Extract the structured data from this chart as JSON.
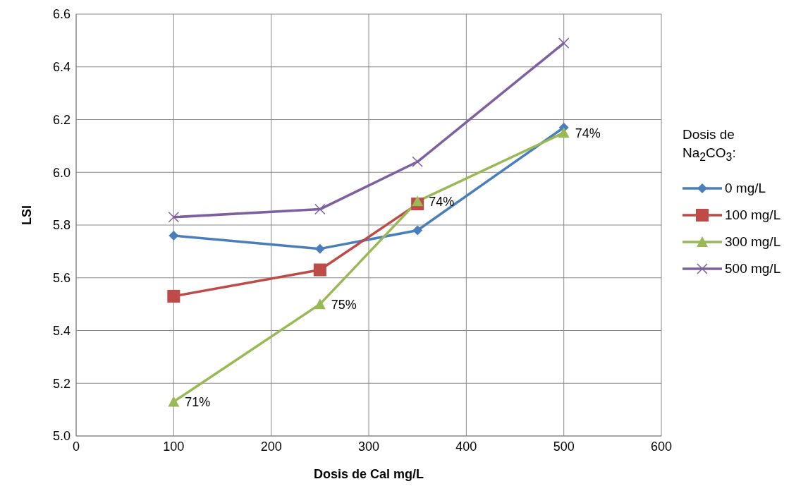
{
  "chart_data": {
    "type": "line",
    "xlabel": "Dosis de Cal mg/L",
    "ylabel": "LSI",
    "legend_title": "Dosis de Na$_{2}$CO$_{3}$:",
    "x": [
      100,
      250,
      350,
      500
    ],
    "series": [
      {
        "name": "0 mg/L",
        "color": "#4a7ebb",
        "marker": "diamond",
        "values": [
          5.76,
          5.71,
          5.78,
          6.17
        ]
      },
      {
        "name": "100 mg/L",
        "color": "#be4b48",
        "marker": "square",
        "values": [
          5.53,
          5.63,
          5.88,
          null
        ]
      },
      {
        "name": "300 mg/L",
        "color": "#98b954",
        "marker": "triangle",
        "values": [
          5.13,
          5.5,
          5.89,
          6.15
        ]
      },
      {
        "name": "500 mg/L",
        "color": "#7d60a0",
        "marker": "cross",
        "values": [
          5.83,
          5.86,
          6.04,
          6.49
        ]
      }
    ],
    "xlim": [
      0,
      600
    ],
    "xticks": [
      0,
      100,
      200,
      300,
      400,
      500,
      600
    ],
    "ylim": [
      5.0,
      6.6
    ],
    "yticks": [
      {
        "value": 5,
        "label": "5.0"
      },
      5.2,
      5.4,
      5.6,
      5.8,
      {
        "value": 6,
        "label": "6.0"
      },
      6.2,
      6.4,
      6.6
    ],
    "annotations": [
      {
        "text": "71%",
        "x": 100,
        "y": 5.13
      },
      {
        "text": "75%",
        "x": 250,
        "y": 5.5
      },
      {
        "text": "74%",
        "x": 350,
        "y": 5.89
      },
      {
        "text": "74%",
        "x": 500,
        "y": 6.15
      }
    ],
    "grid": true,
    "legend": "right",
    "line_style": "solid"
  }
}
